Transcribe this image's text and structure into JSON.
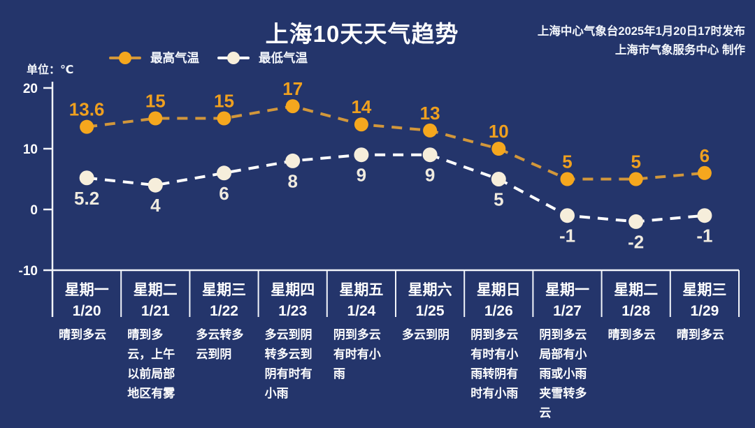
{
  "header": {
    "title": "上海10天天气趋势",
    "publisher_line1": "上海中心气象台2025年1月20日17时发布",
    "publisher_line2": "上海市气象服务中心 制作",
    "unit_label": "单位：℃"
  },
  "legend": [
    {
      "label": "最高气温",
      "line_color": "#D2973B",
      "dot_color": "#F5A71E"
    },
    {
      "label": "最低气温",
      "line_color": "#FFFFFF",
      "dot_color": "#F6EEDB"
    }
  ],
  "colors": {
    "background": "#24356B",
    "axis": "#F2F5FA",
    "high_line": "#D2973B",
    "high_marker": "#F5A71E",
    "high_label": "#EFA01F",
    "low_line": "#FFFFFF",
    "low_marker": "#F6EEDB",
    "low_label": "#F0EBDF",
    "tick_label": "#FFFFFF"
  },
  "chart_data": {
    "type": "line",
    "title": "上海10天天气趋势",
    "unit": "℃",
    "ylim": [
      -10,
      20
    ],
    "yticks": [
      20,
      10,
      0,
      -10
    ],
    "legend_position": "top-left",
    "grid": false,
    "categories": [
      {
        "weekday": "星期一",
        "date": "1/20",
        "weather": "晴到多云"
      },
      {
        "weekday": "星期二",
        "date": "1/21",
        "weather": "晴到多云，上午以前局部地区有雾"
      },
      {
        "weekday": "星期三",
        "date": "1/22",
        "weather": "多云转多云到阴"
      },
      {
        "weekday": "星期四",
        "date": "1/23",
        "weather": "多云到阴转多云到阴有时有小雨"
      },
      {
        "weekday": "星期五",
        "date": "1/24",
        "weather": "阴到多云有时有小雨"
      },
      {
        "weekday": "星期六",
        "date": "1/25",
        "weather": "多云到阴"
      },
      {
        "weekday": "星期日",
        "date": "1/26",
        "weather": "阴到多云有时有小雨转阴有时有小雨"
      },
      {
        "weekday": "星期一",
        "date": "1/27",
        "weather": "阴到多云局部有小雨或小雨夹雪转多云"
      },
      {
        "weekday": "星期二",
        "date": "1/28",
        "weather": "晴到多云"
      },
      {
        "weekday": "星期三",
        "date": "1/29",
        "weather": "晴到多云"
      }
    ],
    "series": [
      {
        "name": "最高气温",
        "values": [
          13.6,
          15,
          15,
          17,
          14,
          13,
          10,
          5,
          5,
          6
        ]
      },
      {
        "name": "最低气温",
        "values": [
          5.2,
          4,
          6,
          8,
          9,
          9,
          5,
          -1,
          -2,
          -1
        ]
      }
    ]
  }
}
